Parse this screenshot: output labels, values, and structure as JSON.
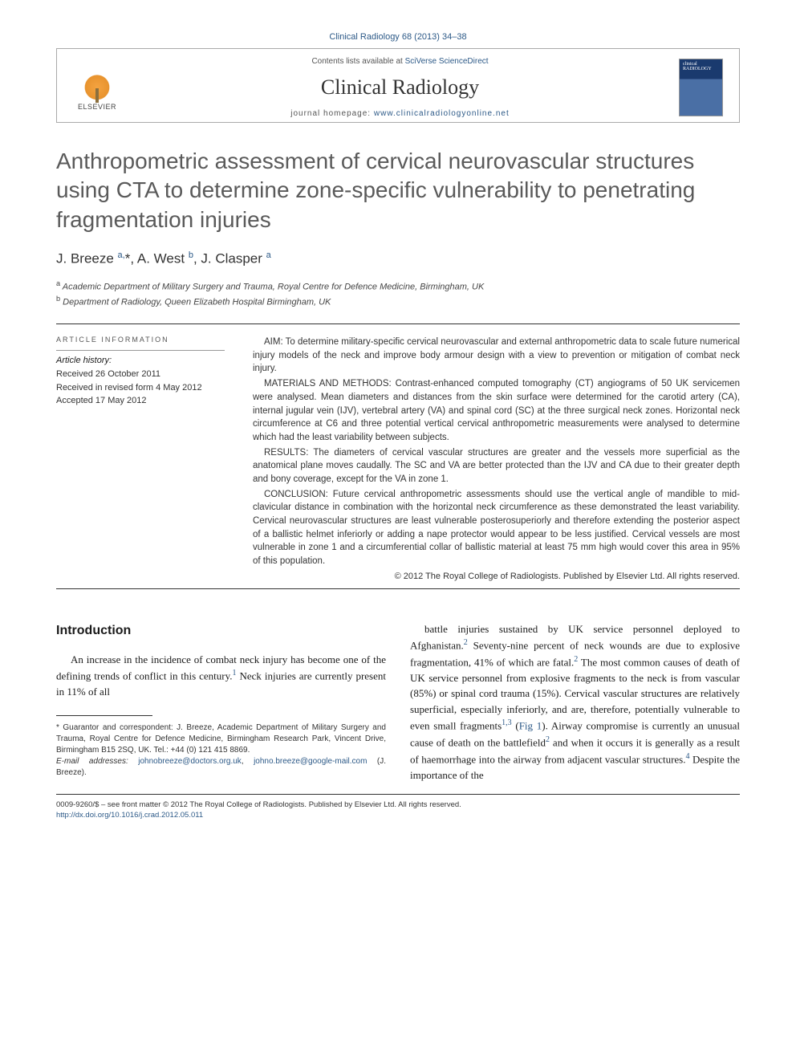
{
  "journal": {
    "citation": "Clinical Radiology 68 (2013) 34–38",
    "contents_prefix": "Contents lists available at ",
    "contents_link": "SciVerse ScienceDirect",
    "name": "Clinical Radiology",
    "homepage_prefix": "journal homepage: ",
    "homepage_url": "www.clinicalradiologyonline.net",
    "publisher_name": "ELSEVIER",
    "cover_text": "clinical RADIOLOGY"
  },
  "article": {
    "title": "Anthropometric assessment of cervical neurovascular structures using CTA to determine zone-specific vulnerability to penetrating fragmentation injuries",
    "authors_html": "J. Breeze <sup>a,</sup>*, A. West <sup>b</sup>, J. Clasper <sup>a</sup>",
    "affiliations": [
      {
        "sup": "a",
        "text": "Academic Department of Military Surgery and Trauma, Royal Centre for Defence Medicine, Birmingham, UK"
      },
      {
        "sup": "b",
        "text": "Department of Radiology, Queen Elizabeth Hospital Birmingham, UK"
      }
    ]
  },
  "article_info": {
    "heading": "ARTICLE INFORMATION",
    "history_label": "Article history:",
    "received": "Received 26 October 2011",
    "revised": "Received in revised form 4 May 2012",
    "accepted": "Accepted 17 May 2012"
  },
  "abstract": {
    "aim": "AIM: To determine military-specific cervical neurovascular and external anthropometric data to scale future numerical injury models of the neck and improve body armour design with a view to prevention or mitigation of combat neck injury.",
    "methods": "MATERIALS AND METHODS: Contrast-enhanced computed tomography (CT) angiograms of 50 UK servicemen were analysed. Mean diameters and distances from the skin surface were determined for the carotid artery (CA), internal jugular vein (IJV), vertebral artery (VA) and spinal cord (SC) at the three surgical neck zones. Horizontal neck circumference at C6 and three potential vertical cervical anthropometric measurements were analysed to determine which had the least variability between subjects.",
    "results": "RESULTS: The diameters of cervical vascular structures are greater and the vessels more superficial as the anatomical plane moves caudally. The SC and VA are better protected than the IJV and CA due to their greater depth and bony coverage, except for the VA in zone 1.",
    "conclusion": "CONCLUSION: Future cervical anthropometric assessments should use the vertical angle of mandible to mid-clavicular distance in combination with the horizontal neck circumference as these demonstrated the least variability. Cervical neurovascular structures are least vulnerable posterosuperiorly and therefore extending the posterior aspect of a ballistic helmet inferiorly or adding a nape protector would appear to be less justified. Cervical vessels are most vulnerable in zone 1 and a circumferential collar of ballistic material at least 75 mm high would cover this area in 95% of this population.",
    "copyright": "© 2012 The Royal College of Radiologists. Published by Elsevier Ltd. All rights reserved."
  },
  "body": {
    "intro_heading": "Introduction",
    "intro_left": "An increase in the incidence of combat neck injury has become one of the defining trends of conflict in this century.¹ Neck injuries are currently present in 11% of all",
    "intro_right": "battle injuries sustained by UK service personnel deployed to Afghanistan.² Seventy-nine percent of neck wounds are due to explosive fragmentation, 41% of which are fatal.² The most common causes of death of UK service personnel from explosive fragments to the neck is from vascular (85%) or spinal cord trauma (15%). Cervical vascular structures are relatively superficial, especially inferiorly, and are, therefore, potentially vulnerable to even small fragments¹,³ (Fig 1). Airway compromise is currently an unusual cause of death on the battlefield² and when it occurs it is generally as a result of haemorrhage into the airway from adjacent vascular structures.⁴ Despite the importance of the"
  },
  "footnotes": {
    "guarantor": "* Guarantor and correspondent: J. Breeze, Academic Department of Military Surgery and Trauma, Royal Centre for Defence Medicine, Birmingham Research Park, Vincent Drive, Birmingham B15 2SQ, UK. Tel.: +44 (0) 121 415 8869.",
    "email_label": "E-mail addresses:",
    "email1": "johnobreeze@doctors.org.uk",
    "email2": "johno.breeze@google-mail.com",
    "email_suffix": " (J. Breeze)."
  },
  "bottom": {
    "issn_line": "0009-9260/$ – see front matter © 2012 The Royal College of Radiologists. Published by Elsevier Ltd. All rights reserved.",
    "doi": "http://dx.doi.org/10.1016/j.crad.2012.05.011"
  },
  "colors": {
    "link": "#2c5987",
    "title_gray": "#5a5a5a",
    "text": "#333333"
  }
}
